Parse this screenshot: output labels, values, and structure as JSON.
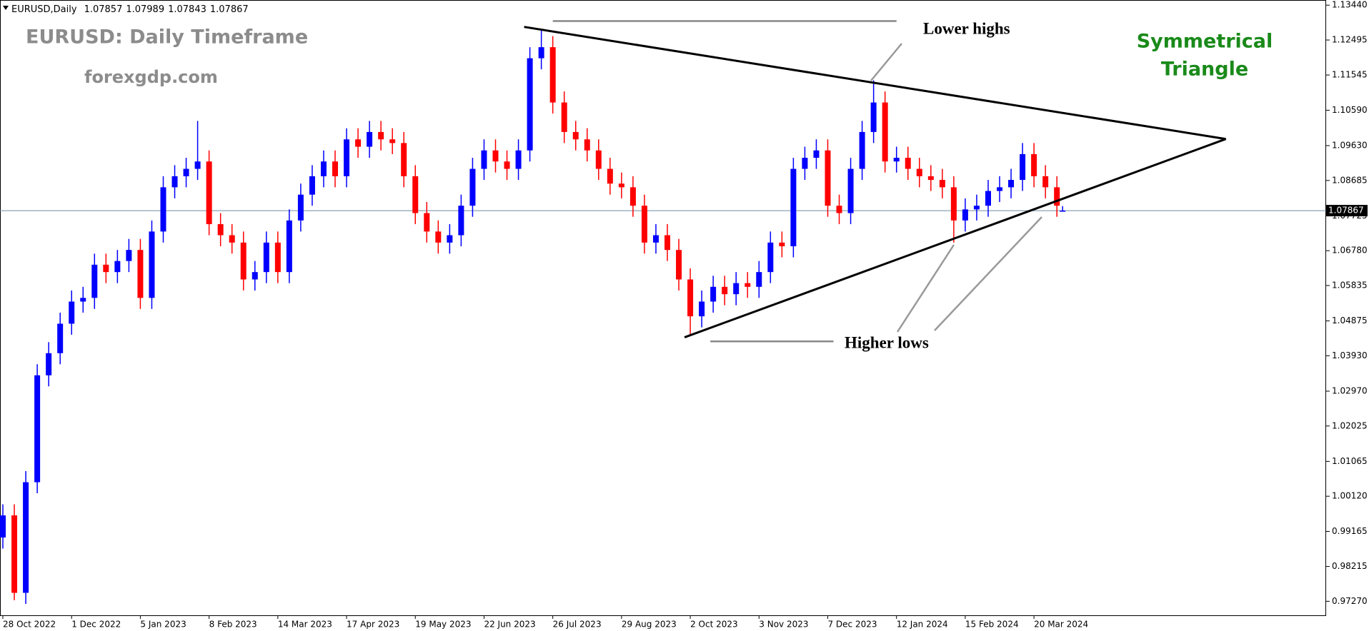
{
  "chart_data": {
    "type": "candlestick",
    "symbol": "EURUSD,Daily",
    "watermark": "EURUSD: Daily Timeframe",
    "site": "forexgdp.com",
    "pattern_title": [
      "Symmetrical",
      "Triangle"
    ],
    "annotations": {
      "upper": "Lower highs",
      "lower": "Higher lows"
    },
    "up_color": "#0000ff",
    "down_color": "#ff0000",
    "x": [
      0,
      4,
      8,
      12,
      16,
      20,
      24,
      28,
      32,
      36,
      40,
      44,
      48,
      52,
      56,
      60,
      64,
      68,
      72,
      76,
      80,
      84,
      88,
      92,
      96,
      100,
      104,
      108,
      112,
      116,
      120,
      124,
      128,
      132,
      136,
      140,
      144,
      148,
      152,
      156,
      160,
      164,
      168,
      172,
      176,
      180,
      184,
      188,
      192,
      196,
      200,
      204,
      208,
      212,
      216,
      220,
      224,
      228,
      232,
      236,
      240,
      244,
      248,
      252,
      256,
      260,
      264,
      268,
      272,
      276,
      280,
      284,
      288,
      292,
      296,
      300,
      304,
      308,
      312,
      316,
      320,
      324,
      328,
      332,
      336,
      340,
      344,
      348,
      352,
      356,
      360,
      364,
      368,
      370
    ],
    "open": [
      0.99,
      0.996,
      0.975,
      1.005,
      1.034,
      1.04,
      1.048,
      1.054,
      1.055,
      1.064,
      1.062,
      1.065,
      1.068,
      1.055,
      1.073,
      1.085,
      1.088,
      1.09,
      1.092,
      1.075,
      1.072,
      1.07,
      1.06,
      1.062,
      1.07,
      1.062,
      1.076,
      1.083,
      1.088,
      1.092,
      1.088,
      1.098,
      1.096,
      1.1,
      1.098,
      1.097,
      1.088,
      1.078,
      1.073,
      1.07,
      1.072,
      1.08,
      1.09,
      1.095,
      1.092,
      1.09,
      1.095,
      1.12,
      1.123,
      1.108,
      1.1,
      1.098,
      1.095,
      1.09,
      1.086,
      1.085,
      1.08,
      1.07,
      1.072,
      1.068,
      1.06,
      1.05,
      1.054,
      1.058,
      1.056,
      1.059,
      1.058,
      1.062,
      1.07,
      1.069,
      1.09,
      1.093,
      1.095,
      1.08,
      1.078,
      1.09,
      1.1,
      1.108,
      1.092,
      1.093,
      1.09,
      1.088,
      1.087,
      1.085,
      1.076,
      1.079,
      1.08,
      1.084,
      1.085,
      1.087,
      1.094,
      1.088,
      1.085,
      1.07857
    ],
    "high": [
      0.999,
      0.999,
      1.008,
      1.037,
      1.043,
      1.051,
      1.057,
      1.058,
      1.067,
      1.067,
      1.068,
      1.071,
      1.071,
      1.076,
      1.088,
      1.091,
      1.093,
      1.103,
      1.095,
      1.078,
      1.075,
      1.073,
      1.065,
      1.073,
      1.073,
      1.079,
      1.086,
      1.091,
      1.095,
      1.095,
      1.101,
      1.101,
      1.103,
      1.103,
      1.101,
      1.1,
      1.091,
      1.081,
      1.076,
      1.075,
      1.083,
      1.093,
      1.098,
      1.098,
      1.095,
      1.098,
      1.123,
      1.1275,
      1.126,
      1.111,
      1.103,
      1.101,
      1.098,
      1.093,
      1.089,
      1.088,
      1.083,
      1.075,
      1.075,
      1.071,
      1.063,
      1.057,
      1.061,
      1.061,
      1.062,
      1.062,
      1.065,
      1.073,
      1.073,
      1.093,
      1.096,
      1.098,
      1.098,
      1.083,
      1.093,
      1.103,
      1.114,
      1.111,
      1.096,
      1.096,
      1.093,
      1.091,
      1.09,
      1.088,
      1.082,
      1.083,
      1.087,
      1.088,
      1.09,
      1.097,
      1.097,
      1.091,
      1.088,
      1.07989
    ],
    "low": [
      0.987,
      0.973,
      0.972,
      1.002,
      1.031,
      1.037,
      1.045,
      1.051,
      1.052,
      1.059,
      1.059,
      1.062,
      1.052,
      1.052,
      1.07,
      1.082,
      1.085,
      1.087,
      1.072,
      1.069,
      1.067,
      1.057,
      1.057,
      1.059,
      1.059,
      1.059,
      1.073,
      1.08,
      1.085,
      1.085,
      1.085,
      1.093,
      1.093,
      1.095,
      1.094,
      1.085,
      1.075,
      1.07,
      1.067,
      1.067,
      1.069,
      1.077,
      1.087,
      1.089,
      1.087,
      1.087,
      1.092,
      1.117,
      1.105,
      1.097,
      1.095,
      1.092,
      1.087,
      1.083,
      1.082,
      1.077,
      1.067,
      1.067,
      1.065,
      1.057,
      1.045,
      1.047,
      1.051,
      1.053,
      1.053,
      1.055,
      1.055,
      1.059,
      1.066,
      1.066,
      1.087,
      1.09,
      1.077,
      1.075,
      1.075,
      1.087,
      1.097,
      1.089,
      1.089,
      1.087,
      1.085,
      1.084,
      1.082,
      1.07,
      1.073,
      1.076,
      1.077,
      1.081,
      1.082,
      1.084,
      1.085,
      1.082,
      1.077,
      1.07843
    ],
    "close": [
      0.996,
      0.975,
      1.005,
      1.034,
      1.04,
      1.048,
      1.054,
      1.055,
      1.064,
      1.062,
      1.065,
      1.068,
      1.055,
      1.073,
      1.085,
      1.088,
      1.09,
      1.092,
      1.075,
      1.072,
      1.07,
      1.06,
      1.062,
      1.07,
      1.062,
      1.076,
      1.083,
      1.088,
      1.092,
      1.088,
      1.098,
      1.096,
      1.1,
      1.098,
      1.097,
      1.088,
      1.078,
      1.073,
      1.07,
      1.072,
      1.08,
      1.09,
      1.095,
      1.092,
      1.09,
      1.095,
      1.12,
      1.123,
      1.108,
      1.1,
      1.098,
      1.095,
      1.09,
      1.086,
      1.085,
      1.08,
      1.07,
      1.072,
      1.068,
      1.06,
      1.05,
      1.054,
      1.058,
      1.056,
      1.059,
      1.058,
      1.062,
      1.07,
      1.069,
      1.09,
      1.093,
      1.095,
      1.08,
      1.078,
      1.09,
      1.1,
      1.108,
      1.092,
      1.093,
      1.09,
      1.088,
      1.087,
      1.085,
      1.076,
      1.079,
      1.08,
      1.084,
      1.085,
      1.087,
      1.094,
      1.088,
      1.085,
      1.08,
      1.07867
    ],
    "current_price": {
      "value": 1.07867,
      "label": "1.07867"
    },
    "trendlines": [
      {
        "x": [
          182,
          427
        ],
        "y": [
          1.1285,
          1.0981
        ]
      },
      {
        "x": [
          238,
          427
        ],
        "y": [
          1.0443,
          1.0981
        ]
      }
    ],
    "levels": [
      {
        "x": [
          192,
          312
        ],
        "y": 1.1301
      },
      {
        "x": [
          247,
          290
        ],
        "y": 1.0432
      }
    ],
    "xlim": [
      -1,
      462
    ],
    "ylim": [
      0.9689,
      1.1358
    ],
    "xticks": [
      {
        "value": 0,
        "label": "28 Oct 2022"
      },
      {
        "value": 24,
        "label": "1 Dec 2022"
      },
      {
        "value": 48,
        "label": "5 Jan 2023"
      },
      {
        "value": 72,
        "label": "8 Feb 2023"
      },
      {
        "value": 96,
        "label": "14 Mar 2023"
      },
      {
        "value": 120,
        "label": "17 Apr 2023"
      },
      {
        "value": 144,
        "label": "19 May 2023"
      },
      {
        "value": 168,
        "label": "22 Jun 2023"
      },
      {
        "value": 192,
        "label": "26 Jul 2023"
      },
      {
        "value": 216,
        "label": "29 Aug 2023"
      },
      {
        "value": 240,
        "label": "2 Oct 2023"
      },
      {
        "value": 264,
        "label": "3 Nov 2023"
      },
      {
        "value": 288,
        "label": "7 Dec 2023"
      },
      {
        "value": 312,
        "label": "12 Jan 2024"
      },
      {
        "value": 336,
        "label": "15 Feb 2024"
      },
      {
        "value": 360,
        "label": "20 Mar 2024"
      }
    ],
    "yticks": [
      {
        "value": 1.1344,
        "label": "1.13440"
      },
      {
        "value": 1.12495,
        "label": "1.12495"
      },
      {
        "value": 1.11545,
        "label": "1.11545"
      },
      {
        "value": 1.1059,
        "label": "1.10590"
      },
      {
        "value": 1.0963,
        "label": "1.09630"
      },
      {
        "value": 1.08685,
        "label": "1.08685"
      },
      {
        "value": 1.07725,
        "label": "1.07725"
      },
      {
        "value": 1.0678,
        "label": "1.06780"
      },
      {
        "value": 1.05835,
        "label": "1.05835"
      },
      {
        "value": 1.04875,
        "label": "1.04875"
      },
      {
        "value": 1.0393,
        "label": "1.03930"
      },
      {
        "value": 1.0297,
        "label": "1.02970"
      },
      {
        "value": 1.02025,
        "label": "1.02025"
      },
      {
        "value": 1.01065,
        "label": "1.01065"
      },
      {
        "value": 1.0012,
        "label": "1.00120"
      },
      {
        "value": 0.99165,
        "label": "0.99165"
      },
      {
        "value": 0.98215,
        "label": "0.98215"
      },
      {
        "value": 0.9727,
        "label": "0.97270"
      }
    ]
  }
}
